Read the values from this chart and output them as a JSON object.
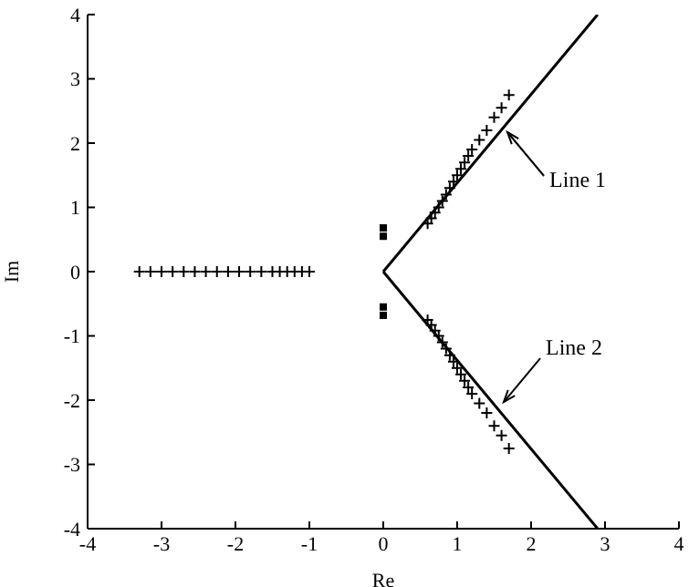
{
  "chart_data": {
    "type": "scatter",
    "xlabel": "Re",
    "ylabel": "Im",
    "xlim": [
      -4,
      4
    ],
    "ylim": [
      -4,
      4
    ],
    "xticks": [
      -4,
      -3,
      -2,
      -1,
      0,
      1,
      2,
      3,
      4
    ],
    "yticks": [
      -4,
      -3,
      -2,
      -1,
      0,
      1,
      2,
      3,
      4
    ],
    "series": [
      {
        "type": "line",
        "color": "#000000",
        "x": [
          0,
          2.9
        ],
        "values": [
          0,
          4
        ],
        "marker": "none"
      },
      {
        "type": "line",
        "color": "#000000",
        "x": [
          0,
          2.9
        ],
        "values": [
          0,
          -4
        ],
        "marker": "none"
      },
      {
        "type": "scatter",
        "color": "#000000",
        "marker": "cross",
        "x": [
          -3.3,
          -3.15,
          -3.0,
          -2.85,
          -2.7,
          -2.55,
          -2.4,
          -2.25,
          -2.1,
          -1.95,
          -1.8,
          -1.65,
          -1.5,
          -1.4,
          -1.3,
          -1.2,
          -1.1,
          -1.0
        ],
        "values": [
          0,
          0,
          0,
          0,
          0,
          0,
          0,
          0,
          0,
          0,
          0,
          0,
          0,
          0,
          0,
          0,
          0,
          0
        ]
      },
      {
        "type": "scatter",
        "color": "#000000",
        "marker": "cross",
        "x": [
          0.6,
          0.65,
          0.7,
          0.75,
          0.8,
          0.85,
          0.9,
          0.95,
          1.0,
          1.05,
          1.1,
          1.15,
          1.2,
          1.3,
          1.4,
          1.5,
          1.6,
          1.7
        ],
        "values": [
          0.75,
          0.83,
          0.92,
          1.0,
          1.1,
          1.2,
          1.3,
          1.4,
          1.5,
          1.6,
          1.7,
          1.8,
          1.9,
          2.05,
          2.2,
          2.4,
          2.55,
          2.75
        ]
      },
      {
        "type": "scatter",
        "color": "#000000",
        "marker": "cross",
        "x": [
          0.6,
          0.65,
          0.7,
          0.75,
          0.8,
          0.85,
          0.9,
          0.95,
          1.0,
          1.05,
          1.1,
          1.15,
          1.2,
          1.3,
          1.4,
          1.5,
          1.6,
          1.7
        ],
        "values": [
          -0.75,
          -0.83,
          -0.92,
          -1.0,
          -1.1,
          -1.2,
          -1.3,
          -1.4,
          -1.5,
          -1.6,
          -1.7,
          -1.8,
          -1.9,
          -2.05,
          -2.2,
          -2.4,
          -2.55,
          -2.75
        ]
      },
      {
        "type": "scatter",
        "color": "#000000",
        "marker": "square",
        "x": [
          0,
          0
        ],
        "values": [
          0.55,
          0.68
        ]
      },
      {
        "type": "scatter",
        "color": "#000000",
        "marker": "square",
        "x": [
          0,
          0
        ],
        "values": [
          -0.55,
          -0.68
        ]
      }
    ],
    "annotations": [
      {
        "text": "Line 1",
        "x": 1.68,
        "y": 2.17
      },
      {
        "text": "Line 2",
        "x": 1.63,
        "y": -2.03
      }
    ]
  }
}
